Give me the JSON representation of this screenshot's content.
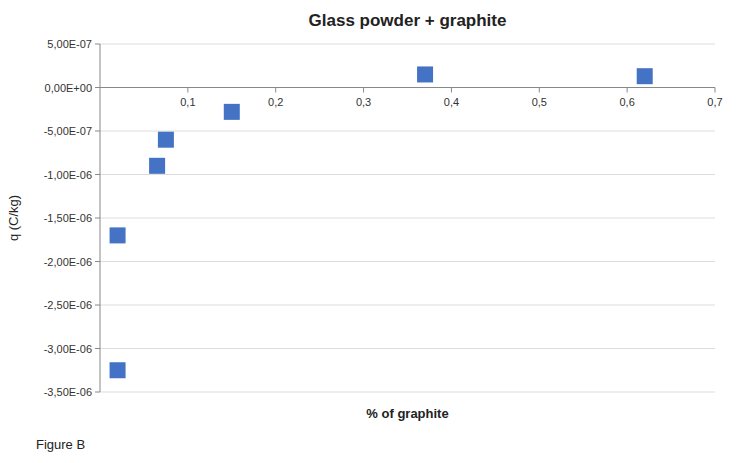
{
  "chart_data": {
    "type": "scatter",
    "title": "Glass powder + graphite",
    "xlabel": "% of graphite",
    "ylabel": "q (C/kg)",
    "annotations": [
      "Figure B"
    ],
    "x": [
      0.02,
      0.02,
      0.065,
      0.075,
      0.15,
      0.37,
      0.62
    ],
    "values": [
      -3.25e-06,
      -1.7e-06,
      -9e-07,
      -6e-07,
      -2.8e-07,
      1.5e-07,
      1.3e-07
    ],
    "color": "#4472C4",
    "marker": "square",
    "xlim": [
      0,
      0.7
    ],
    "ylim": [
      -3.5e-06,
      5e-07
    ],
    "xticks": [
      {
        "value": 0.1,
        "label": "0,1"
      },
      {
        "value": 0.2,
        "label": "0,2"
      },
      {
        "value": 0.3,
        "label": "0,3"
      },
      {
        "value": 0.4,
        "label": "0,4"
      },
      {
        "value": 0.5,
        "label": "0,5"
      },
      {
        "value": 0.6,
        "label": "0,6"
      },
      {
        "value": 0.7,
        "label": "0,7"
      }
    ],
    "yticks": [
      {
        "value": -3.5e-06,
        "label": "-3,50E-06"
      },
      {
        "value": -3e-06,
        "label": "-3,00E-06"
      },
      {
        "value": -2.5e-06,
        "label": "-2,50E-06"
      },
      {
        "value": -2e-06,
        "label": "-2,00E-06"
      },
      {
        "value": -1.5e-06,
        "label": "-1,50E-06"
      },
      {
        "value": -1e-06,
        "label": "-1,00E-06"
      },
      {
        "value": -5e-07,
        "label": "-5,00E-07"
      },
      {
        "value": 0.0,
        "label": "0,00E+00"
      },
      {
        "value": 5e-07,
        "label": "5,00E-07"
      }
    ],
    "grid": true
  }
}
